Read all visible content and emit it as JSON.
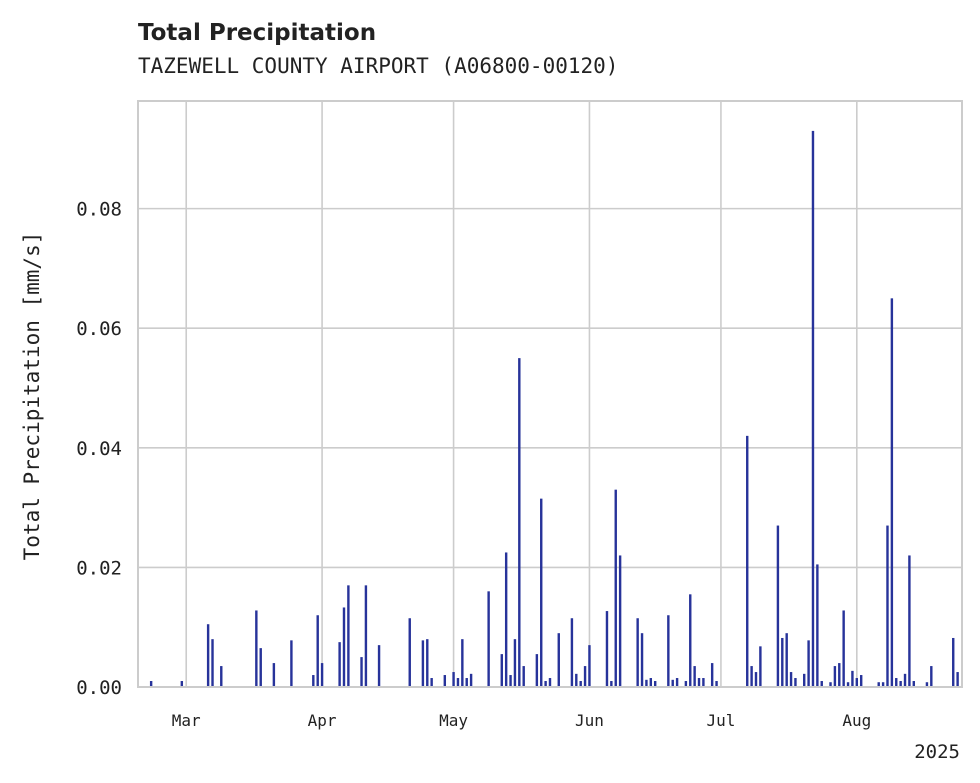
{
  "chart_data": {
    "type": "bar",
    "title": "Total Precipitation",
    "subtitle": "TAZEWELL COUNTY AIRPORT (A06800-00120)",
    "ylabel": "Total Precipitation [mm/s]",
    "xlabel": "",
    "year_label": "2025",
    "x_range": [
      "2025-02-18",
      "2025-08-25"
    ],
    "ylim": [
      0,
      0.098
    ],
    "y_ticks": [
      0.0,
      0.02,
      0.04,
      0.06,
      0.08
    ],
    "y_tick_labels": [
      "0.00",
      "0.02",
      "0.04",
      "0.06",
      "0.08"
    ],
    "x_ticks": [
      "2025-03-01",
      "2025-04-01",
      "2025-05-01",
      "2025-06-01",
      "2025-07-01",
      "2025-08-01"
    ],
    "x_tick_labels": [
      "Mar",
      "Apr",
      "May",
      "Jun",
      "Jul",
      "Aug"
    ],
    "grid": true,
    "series": [
      {
        "color": "#27339a",
        "x": [
          "2025-02-21",
          "2025-02-28",
          "2025-03-06",
          "2025-03-07",
          "2025-03-09",
          "2025-03-17",
          "2025-03-18",
          "2025-03-21",
          "2025-03-25",
          "2025-03-30",
          "2025-03-31",
          "2025-04-01",
          "2025-04-05",
          "2025-04-06",
          "2025-04-07",
          "2025-04-10",
          "2025-04-11",
          "2025-04-14",
          "2025-04-21",
          "2025-04-24",
          "2025-04-25",
          "2025-04-26",
          "2025-04-29",
          "2025-05-01",
          "2025-05-02",
          "2025-05-03",
          "2025-05-04",
          "2025-05-05",
          "2025-05-09",
          "2025-05-12",
          "2025-05-13",
          "2025-05-14",
          "2025-05-15",
          "2025-05-16",
          "2025-05-17",
          "2025-05-20",
          "2025-05-21",
          "2025-05-22",
          "2025-05-23",
          "2025-05-25",
          "2025-05-28",
          "2025-05-29",
          "2025-05-30",
          "2025-05-31",
          "2025-06-01",
          "2025-06-05",
          "2025-06-06",
          "2025-06-07",
          "2025-06-08",
          "2025-06-12",
          "2025-06-13",
          "2025-06-14",
          "2025-06-15",
          "2025-06-16",
          "2025-06-19",
          "2025-06-20",
          "2025-06-21",
          "2025-06-23",
          "2025-06-24",
          "2025-06-25",
          "2025-06-26",
          "2025-06-27",
          "2025-06-29",
          "2025-06-30",
          "2025-07-07",
          "2025-07-08",
          "2025-07-09",
          "2025-07-10",
          "2025-07-14",
          "2025-07-15",
          "2025-07-16",
          "2025-07-17",
          "2025-07-18",
          "2025-07-20",
          "2025-07-21",
          "2025-07-22",
          "2025-07-23",
          "2025-07-24",
          "2025-07-26",
          "2025-07-27",
          "2025-07-28",
          "2025-07-29",
          "2025-07-30",
          "2025-07-31",
          "2025-08-01",
          "2025-08-02",
          "2025-08-06",
          "2025-08-07",
          "2025-08-08",
          "2025-08-09",
          "2025-08-10",
          "2025-08-11",
          "2025-08-12",
          "2025-08-13",
          "2025-08-14",
          "2025-08-17",
          "2025-08-18",
          "2025-08-23",
          "2025-08-24"
        ],
        "values": [
          0.001,
          0.001,
          0.0105,
          0.008,
          0.0035,
          0.0128,
          0.0065,
          0.004,
          0.0078,
          0.002,
          0.012,
          0.004,
          0.0075,
          0.0133,
          0.017,
          0.005,
          0.017,
          0.007,
          0.0115,
          0.0078,
          0.008,
          0.0015,
          0.002,
          0.0025,
          0.0015,
          0.008,
          0.0015,
          0.0022,
          0.016,
          0.0055,
          0.0225,
          0.002,
          0.008,
          0.055,
          0.0035,
          0.0055,
          0.0315,
          0.001,
          0.0015,
          0.009,
          0.0115,
          0.0022,
          0.001,
          0.0035,
          0.007,
          0.0127,
          0.001,
          0.033,
          0.022,
          0.0115,
          0.009,
          0.0012,
          0.0015,
          0.001,
          0.012,
          0.0012,
          0.0015,
          0.001,
          0.0155,
          0.0035,
          0.0015,
          0.0015,
          0.004,
          0.001,
          0.042,
          0.0035,
          0.0025,
          0.0068,
          0.027,
          0.0082,
          0.009,
          0.0025,
          0.0015,
          0.0022,
          0.0078,
          0.093,
          0.0205,
          0.001,
          0.0008,
          0.0035,
          0.004,
          0.0128,
          0.0008,
          0.0027,
          0.0015,
          0.002,
          0.0008,
          0.0008,
          0.027,
          0.065,
          0.0015,
          0.001,
          0.0022,
          0.022,
          0.001,
          0.0008,
          0.0035,
          0.0082,
          0.0025
        ]
      }
    ]
  }
}
